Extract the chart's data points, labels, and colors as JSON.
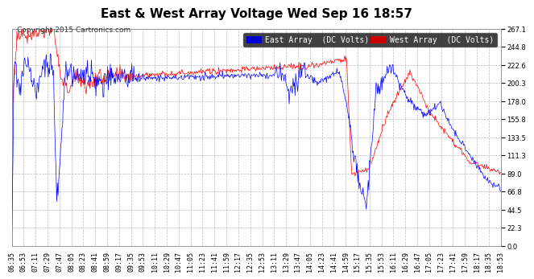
{
  "title": "East & West Array Voltage Wed Sep 16 18:57",
  "copyright": "Copyright 2015 Cartronics.com",
  "east_label": "East Array  (DC Volts)",
  "west_label": "West Array  (DC Volts)",
  "east_color": "#0000ff",
  "west_color": "#ff0000",
  "legend_east_bg": "#0000cc",
  "legend_west_bg": "#cc0000",
  "bg_color": "#ffffff",
  "plot_bg": "#ffffff",
  "grid_color": "#bbbbbb",
  "yticks": [
    0.0,
    22.3,
    44.5,
    66.8,
    89.0,
    111.3,
    133.5,
    155.8,
    178.0,
    200.3,
    222.6,
    244.8,
    267.1
  ],
  "ymin": 0.0,
  "ymax": 267.1,
  "title_fontsize": 11,
  "copyright_fontsize": 6.5,
  "legend_fontsize": 7,
  "tick_fontsize": 6,
  "num_points": 750,
  "total_minutes": 738,
  "x_tick_labels": [
    "06:35",
    "06:53",
    "07:11",
    "07:29",
    "07:47",
    "08:05",
    "08:23",
    "08:41",
    "08:59",
    "09:17",
    "09:35",
    "09:53",
    "10:11",
    "10:29",
    "10:47",
    "11:05",
    "11:23",
    "11:41",
    "11:59",
    "12:17",
    "12:35",
    "12:53",
    "13:11",
    "13:29",
    "13:47",
    "14:05",
    "14:23",
    "14:41",
    "14:59",
    "15:17",
    "15:35",
    "15:53",
    "16:11",
    "16:29",
    "16:47",
    "17:05",
    "17:23",
    "17:41",
    "17:59",
    "18:17",
    "18:35",
    "18:53"
  ]
}
